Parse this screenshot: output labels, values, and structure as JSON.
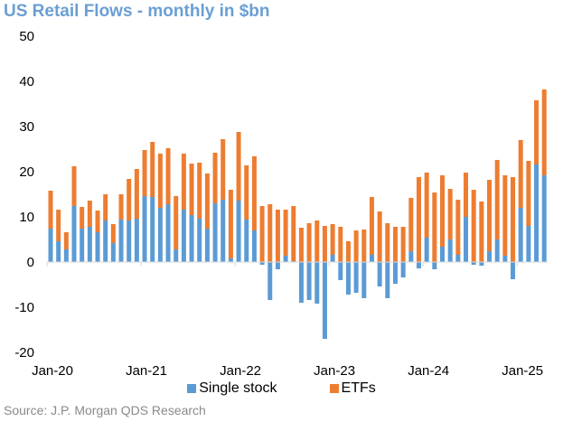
{
  "chart_data": {
    "type": "bar",
    "stacked": true,
    "title": "US Retail Flows - monthly in $bn",
    "xlabel": "",
    "ylabel": "",
    "ylim": [
      -20,
      50
    ],
    "yticks": [
      50,
      40,
      30,
      20,
      10,
      0,
      -10,
      -20
    ],
    "grid": false,
    "legend_position": "bottom",
    "x_start": "Jan-20",
    "x_end": "Apr-25",
    "x_tick_labels": [
      "Jan-20",
      "Jan-21",
      "Jan-22",
      "Jan-23",
      "Jan-24",
      "Jan-25"
    ],
    "x_tick_label_every": 12,
    "categories": [
      "Jan-20",
      "Feb-20",
      "Mar-20",
      "Apr-20",
      "May-20",
      "Jun-20",
      "Jul-20",
      "Aug-20",
      "Sep-20",
      "Oct-20",
      "Nov-20",
      "Dec-20",
      "Jan-21",
      "Feb-21",
      "Mar-21",
      "Apr-21",
      "May-21",
      "Jun-21",
      "Jul-21",
      "Aug-21",
      "Sep-21",
      "Oct-21",
      "Nov-21",
      "Dec-21",
      "Jan-22",
      "Feb-22",
      "Mar-22",
      "Apr-22",
      "May-22",
      "Jun-22",
      "Jul-22",
      "Aug-22",
      "Sep-22",
      "Oct-22",
      "Nov-22",
      "Dec-22",
      "Jan-23",
      "Feb-23",
      "Mar-23",
      "Apr-23",
      "May-23",
      "Jun-23",
      "Jul-23",
      "Aug-23",
      "Sep-23",
      "Oct-23",
      "Nov-23",
      "Dec-23",
      "Jan-24",
      "Feb-24",
      "Mar-24",
      "Apr-24",
      "May-24",
      "Jun-24",
      "Jul-24",
      "Aug-24",
      "Sep-24",
      "Oct-24",
      "Nov-24",
      "Dec-24",
      "Jan-25",
      "Feb-25",
      "Mar-25",
      "Apr-25"
    ],
    "series": [
      {
        "name": "Single stock",
        "color": "#5b9bd5",
        "values": [
          7.4,
          4.6,
          2.8,
          12.4,
          7.4,
          7.8,
          6.6,
          9.2,
          4.2,
          9.4,
          9.2,
          9.6,
          14.6,
          14.4,
          12.0,
          12.8,
          2.8,
          11.6,
          10.4,
          9.6,
          7.4,
          13.0,
          13.8,
          0.8,
          13.6,
          9.4,
          7.0,
          -0.6,
          -8.4,
          -1.6,
          1.4,
          0.2,
          -9.0,
          -8.4,
          -9.2,
          -17.0,
          1.6,
          -4.0,
          -7.2,
          -6.8,
          -8.0,
          1.6,
          -5.4,
          -8.0,
          -4.8,
          -3.4,
          2.4,
          -1.4,
          5.4,
          -1.6,
          3.4,
          5.0,
          1.6,
          10.0,
          -0.6,
          -0.8,
          2.4,
          5.0,
          1.4,
          -3.8,
          12.0,
          8.0,
          21.6,
          19.2
        ]
      },
      {
        "name": "ETFs",
        "color": "#ed7d31",
        "values": [
          8.4,
          7.0,
          3.8,
          8.8,
          4.8,
          5.8,
          4.8,
          5.8,
          4.2,
          5.6,
          9.2,
          11.0,
          10.2,
          12.2,
          12.0,
          12.4,
          11.8,
          12.4,
          11.4,
          12.4,
          12.2,
          11.2,
          13.4,
          15.2,
          15.2,
          12.0,
          16.4,
          12.4,
          12.8,
          11.6,
          10.2,
          12.2,
          7.6,
          8.6,
          9.2,
          8.0,
          6.8,
          7.8,
          4.6,
          7.0,
          7.2,
          12.8,
          11.2,
          8.6,
          7.8,
          7.8,
          11.8,
          18.8,
          14.4,
          15.4,
          15.8,
          11.2,
          12.2,
          9.8,
          16.0,
          13.4,
          15.8,
          17.6,
          17.8,
          18.8,
          15.0,
          14.4,
          14.2,
          19.0
        ]
      }
    ],
    "source": "Source: J.P. Morgan QDS Research"
  },
  "legend": {
    "items": [
      {
        "label": "Single stock",
        "color": "#5b9bd5"
      },
      {
        "label": "ETFs",
        "color": "#ed7d31"
      }
    ]
  }
}
